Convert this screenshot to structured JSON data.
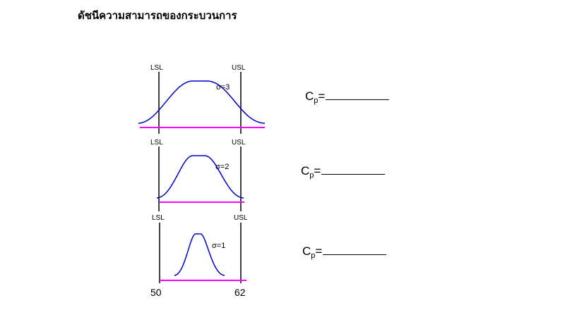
{
  "title": "ดัชนีความสามารถของกระบวนการ",
  "lsl_label": "LSL",
  "usl_label": "USL",
  "axis": {
    "lsl_value": "50",
    "usl_value": "62"
  },
  "panels": [
    {
      "sigma_label": "σ=3",
      "sigma": 3,
      "cp_symbol": "C",
      "cp_subscript": "p",
      "cp_equals": "="
    },
    {
      "sigma_label": "σ=2",
      "sigma": 2,
      "cp_symbol": "C",
      "cp_subscript": "p",
      "cp_equals": "="
    },
    {
      "sigma_label": "σ=1",
      "sigma": 1,
      "cp_symbol": "C",
      "cp_subscript": "p",
      "cp_equals": "="
    }
  ],
  "colors": {
    "curve": "#0000cc",
    "baseline": "#ff00ff",
    "spec_line": "#000000"
  }
}
